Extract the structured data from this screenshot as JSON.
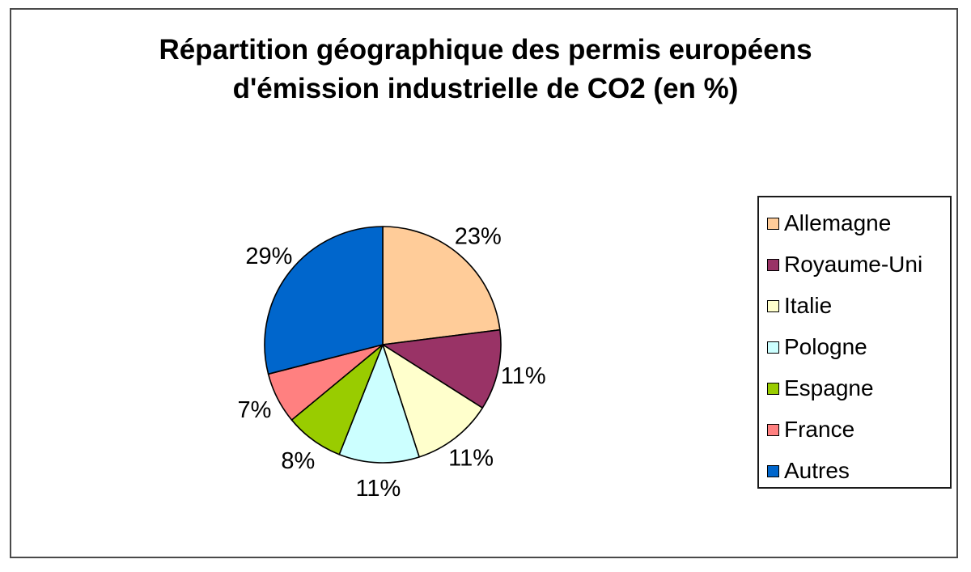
{
  "chart_data": {
    "type": "pie",
    "title": {
      "line1": "Répartition géographique des permis européens",
      "line2": "d'émission industrielle de CO2 (en %)"
    },
    "legend_position": "right",
    "slices": [
      {
        "name": "Allemagne",
        "value": 23,
        "label": "23%",
        "color": "#FFCC99"
      },
      {
        "name": "Royaume-Uni",
        "value": 11,
        "label": "11%",
        "color": "#993366"
      },
      {
        "name": "Italie",
        "value": 11,
        "label": "11%",
        "color": "#FFFFCC"
      },
      {
        "name": "Pologne",
        "value": 11,
        "label": "11%",
        "color": "#CCFFFF"
      },
      {
        "name": "Espagne",
        "value": 8,
        "label": "8%",
        "color": "#99CC00"
      },
      {
        "name": "France",
        "value": 7,
        "label": "7%",
        "color": "#FF8080"
      },
      {
        "name": "Autres",
        "value": 29,
        "label": "29%",
        "color": "#0066CC"
      }
    ]
  }
}
